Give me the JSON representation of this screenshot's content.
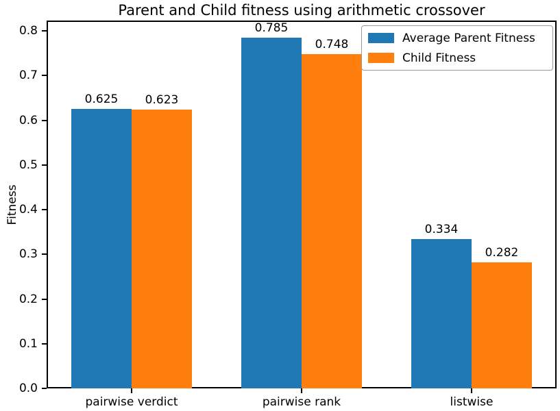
{
  "chart_data": {
    "type": "bar",
    "title": "Parent and Child fitness using arithmetic crossover",
    "xlabel": "",
    "ylabel": "Fitness",
    "categories": [
      "pairwise verdict",
      "pairwise rank",
      "listwise"
    ],
    "series": [
      {
        "name": "Average Parent Fitness",
        "color": "#1f77b4",
        "values": [
          0.625,
          0.785,
          0.334
        ],
        "labels": [
          "0.625",
          "0.785",
          "0.334"
        ]
      },
      {
        "name": "Child Fitness",
        "color": "#ff7f0e",
        "values": [
          0.623,
          0.748,
          0.282
        ],
        "labels": [
          "0.623",
          "0.748",
          "0.282"
        ]
      }
    ],
    "yticks": [
      0.0,
      0.1,
      0.2,
      0.3,
      0.4,
      0.5,
      0.6,
      0.7,
      0.8
    ],
    "ytick_labels": [
      "0.0",
      "0.1",
      "0.2",
      "0.3",
      "0.4",
      "0.5",
      "0.6",
      "0.7",
      "0.8"
    ],
    "ylim": [
      0,
      0.823
    ],
    "grid": false,
    "legend": {
      "position": "upper right",
      "entries": [
        "Average Parent Fitness",
        "Child Fitness"
      ]
    },
    "colors": {
      "axis": "#000000",
      "text": "#000000",
      "background": "#ffffff"
    }
  }
}
